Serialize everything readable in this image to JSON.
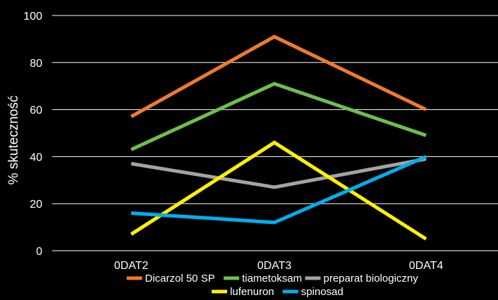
{
  "chart_data": {
    "type": "line",
    "title": "",
    "xlabel": "",
    "ylabel": "% skuteczność",
    "categories": [
      "0DAT2",
      "0DAT3",
      "0DAT4"
    ],
    "ylim": [
      0,
      100
    ],
    "yticks": [
      0,
      20,
      40,
      60,
      80,
      100
    ],
    "grid": true,
    "legend_position": "bottom",
    "series": [
      {
        "name": "Dicarzol 50 SP",
        "color": "#f07a2b",
        "values": [
          57,
          91,
          60
        ]
      },
      {
        "name": "tiametoksam",
        "color": "#6ec049",
        "values": [
          43,
          71,
          49
        ]
      },
      {
        "name": "preparat biologiczny",
        "color": "#a3a3a3",
        "values": [
          37,
          27,
          39
        ]
      },
      {
        "name": "lufenuron",
        "color": "#fff200",
        "values": [
          7,
          46,
          5
        ]
      },
      {
        "name": "spinosad",
        "color": "#00aeef",
        "values": [
          16,
          12,
          40
        ]
      }
    ]
  }
}
